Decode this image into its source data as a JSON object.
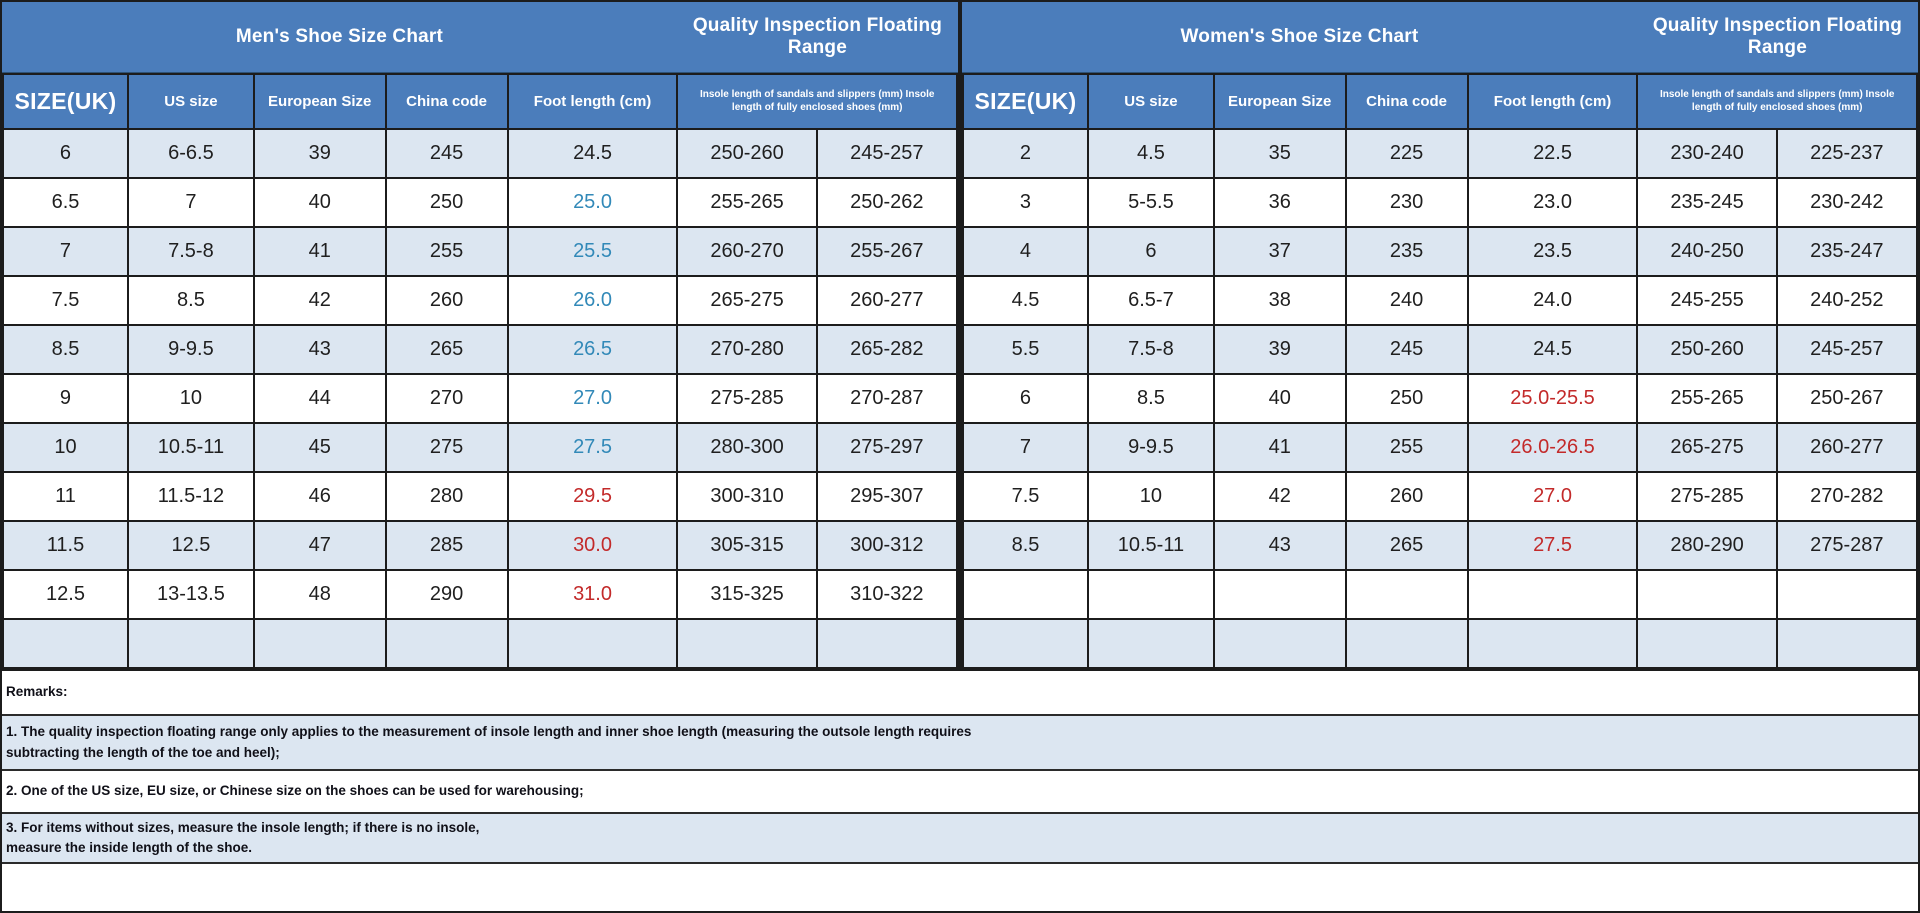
{
  "colors": {
    "header_blue": "#4b7dbb",
    "row_shade": "#dce6f1",
    "grid_line": "#1c1c1c",
    "foot_length_blue": "#3289b8",
    "foot_length_red": "#c32a2a"
  },
  "chart_data": [
    {
      "type": "table",
      "title": "Men's Shoe Size Chart",
      "subtitle": "Quality Inspection Floating Range",
      "columns": [
        "SIZE(UK)",
        "US size",
        "European Size",
        "China code",
        "Foot length (cm)",
        "Insole length of sandals and slippers (mm) Insole length of fully enclosed shoes (mm)"
      ],
      "rows": [
        [
          "6",
          "6-6.5",
          "39",
          "245",
          "24.5",
          "250-260",
          "245-257"
        ],
        [
          "6.5",
          "7",
          "40",
          "250",
          "25.0",
          "255-265",
          "250-262"
        ],
        [
          "7",
          "7.5-8",
          "41",
          "255",
          "25.5",
          "260-270",
          "255-267"
        ],
        [
          "7.5",
          "8.5",
          "42",
          "260",
          "26.0",
          "265-275",
          "260-277"
        ],
        [
          "8.5",
          "9-9.5",
          "43",
          "265",
          "26.5",
          "270-280",
          "265-282"
        ],
        [
          "9",
          "10",
          "44",
          "270",
          "27.0",
          "275-285",
          "270-287"
        ],
        [
          "10",
          "10.5-11",
          "45",
          "275",
          "27.5",
          "280-300",
          "275-297"
        ],
        [
          "11",
          "11.5-12",
          "46",
          "280",
          "29.5",
          "300-310",
          "295-307"
        ],
        [
          "11.5",
          "12.5",
          "47",
          "285",
          "30.0",
          "305-315",
          "300-312"
        ],
        [
          "12.5",
          "13-13.5",
          "48",
          "290",
          "31.0",
          "315-325",
          "310-322"
        ],
        [
          "",
          "",
          "",
          "",
          "",
          "",
          ""
        ]
      ],
      "foot_length_styles": [
        "normal",
        "blue",
        "blue",
        "blue",
        "blue",
        "blue",
        "blue",
        "red",
        "red",
        "red",
        "normal"
      ]
    },
    {
      "type": "table",
      "title": "Women's Shoe Size Chart",
      "subtitle": "Quality Inspection Floating Range",
      "columns": [
        "SIZE(UK)",
        "US size",
        "European Size",
        "China code",
        "Foot length (cm)",
        "Insole length of sandals and slippers (mm) Insole length of fully enclosed shoes (mm)"
      ],
      "rows": [
        [
          "2",
          "4.5",
          "35",
          "225",
          "22.5",
          "230-240",
          "225-237"
        ],
        [
          "3",
          "5-5.5",
          "36",
          "230",
          "23.0",
          "235-245",
          "230-242"
        ],
        [
          "4",
          "6",
          "37",
          "235",
          "23.5",
          "240-250",
          "235-247"
        ],
        [
          "4.5",
          "6.5-7",
          "38",
          "240",
          "24.0",
          "245-255",
          "240-252"
        ],
        [
          "5.5",
          "7.5-8",
          "39",
          "245",
          "24.5",
          "250-260",
          "245-257"
        ],
        [
          "6",
          "8.5",
          "40",
          "250",
          "25.0-25.5",
          "255-265",
          "250-267"
        ],
        [
          "7",
          "9-9.5",
          "41",
          "255",
          "26.0-26.5",
          "265-275",
          "260-277"
        ],
        [
          "7.5",
          "10",
          "42",
          "260",
          "27.0",
          "275-285",
          "270-282"
        ],
        [
          "8.5",
          "10.5-11",
          "43",
          "265",
          "27.5",
          "280-290",
          "275-287"
        ],
        [
          "",
          "",
          "",
          "",
          "",
          "",
          ""
        ],
        [
          "",
          "",
          "",
          "",
          "",
          "",
          ""
        ]
      ],
      "foot_length_styles": [
        "normal",
        "normal",
        "normal",
        "normal",
        "normal",
        "red",
        "red",
        "red",
        "red",
        "normal",
        "normal"
      ]
    }
  ],
  "remarks": {
    "label": "Remarks:",
    "items": [
      {
        "text": "1. The quality inspection floating range only applies to the measurement of insole length and inner shoe length (measuring the outsole length requires\nsubtracting the length of the toe and heel);",
        "shaded": true
      },
      {
        "text": "2. One of the US size, EU size, or Chinese size on the shoes can be used for warehousing;",
        "shaded": false
      },
      {
        "text": "3. For items without sizes, measure the insole length; if there is no insole,\nmeasure the inside length of the shoe.",
        "shaded": true
      }
    ]
  }
}
